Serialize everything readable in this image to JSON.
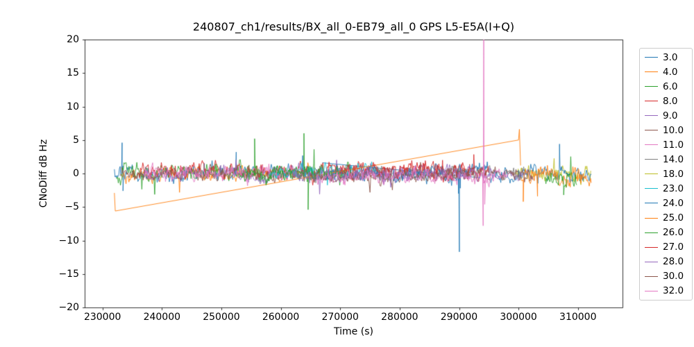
{
  "chart_data": {
    "type": "line",
    "title": "240807_ch1/results/BX_all_0-EB79_all_0 GPS L5-E5A(I+Q)",
    "xlabel": "Time (s)",
    "ylabel": "CNoDiff dB Hz",
    "xlim": [
      227000,
      317500
    ],
    "ylim": [
      -20,
      20
    ],
    "x_ticks": [
      230000,
      240000,
      250000,
      260000,
      270000,
      280000,
      290000,
      300000,
      310000
    ],
    "y_ticks": [
      -20,
      -15,
      -10,
      -5,
      0,
      5,
      10,
      15,
      20
    ],
    "grid": false,
    "legend_position": "right-outside",
    "legend_entries": [
      "3.0",
      "4.0",
      "6.0",
      "8.0",
      "9.0",
      "10.0",
      "11.0",
      "14.0",
      "18.0",
      "23.0",
      "24.0",
      "25.0",
      "26.0",
      "27.0",
      "28.0",
      "30.0",
      "32.0"
    ],
    "description": "Noisy CNo difference traces per satellite PRN, mostly fluctuating within +/-3 dB around 0 between t=232000 and t=312000. Notable features: orange (25.0) sparse trace ramps from -5.6 at t=232000 to +5 at t=300000 with a +6.6 spike then drops; blue (24.0) negative spike to -11.7 at t=290000; pink (32.0) vertical glitch at t=294150 reaching +20 (clipped) from about -8; green (6.0) spikes to +6 / -5.4 near t=264500.",
    "series": [
      {
        "name": "3.0",
        "color": "#1f77b4",
        "segments": [
          {
            "type": "noise",
            "x0": 232000,
            "x1": 267000,
            "dt": 120,
            "mean": 0.0,
            "amp": 1.35,
            "seed": 31,
            "anomalies": [
              [
                233300,
                4.6
              ],
              [
                233450,
                -2.6
              ],
              [
                252500,
                3.2
              ]
            ]
          },
          {
            "type": "line",
            "pts": [
              [
                267000,
                1.6
              ],
              [
                293200,
                -0.6
              ]
            ]
          }
        ]
      },
      {
        "name": "4.0",
        "color": "#ff7f0e",
        "segments": [
          {
            "type": "noise",
            "x0": 233000,
            "x1": 265000,
            "dt": 120,
            "mean": -0.2,
            "amp": 1.2,
            "seed": 42
          }
        ]
      },
      {
        "name": "6.0",
        "color": "#2ca02c",
        "segments": [
          {
            "type": "noise",
            "x0": 232300,
            "x1": 266800,
            "dt": 120,
            "mean": 0.2,
            "amp": 1.4,
            "seed": 63,
            "anomalies": [
              [
                255600,
                5.2
              ],
              [
                263900,
                6.0
              ],
              [
                264600,
                -5.4
              ],
              [
                265600,
                3.6
              ]
            ]
          }
        ]
      },
      {
        "name": "8.0",
        "color": "#d62728",
        "segments": [
          {
            "type": "noise",
            "x0": 236000,
            "x1": 292000,
            "dt": 130,
            "mean": 0.3,
            "amp": 1.35,
            "seed": 85
          }
        ]
      },
      {
        "name": "9.0",
        "color": "#9467bd",
        "segments": [
          {
            "type": "noise",
            "x0": 236500,
            "x1": 290000,
            "dt": 130,
            "mean": 0.0,
            "amp": 1.2,
            "seed": 97
          }
        ]
      },
      {
        "name": "10.0",
        "color": "#8c564b",
        "segments": [
          {
            "type": "noise",
            "x0": 233200,
            "x1": 292500,
            "dt": 130,
            "mean": 0.0,
            "amp": 1.1,
            "seed": 104
          }
        ]
      },
      {
        "name": "11.0",
        "color": "#e377c2",
        "segments": [
          {
            "type": "noise",
            "x0": 237000,
            "x1": 263000,
            "dt": 120,
            "mean": 0.0,
            "amp": 1.3,
            "seed": 117
          }
        ]
      },
      {
        "name": "14.0",
        "color": "#7f7f7f",
        "segments": [
          {
            "type": "noise",
            "x0": 262000,
            "x1": 301000,
            "dt": 130,
            "mean": 0.0,
            "amp": 1.1,
            "seed": 146
          }
        ]
      },
      {
        "name": "18.0",
        "color": "#bcbd22",
        "segments": [
          {
            "type": "noise",
            "x0": 299500,
            "x1": 312200,
            "dt": 110,
            "mean": 0.0,
            "amp": 1.2,
            "seed": 188
          }
        ]
      },
      {
        "name": "23.0",
        "color": "#17becf",
        "segments": [
          {
            "type": "noise",
            "x0": 258000,
            "x1": 276000,
            "dt": 120,
            "mean": 0.3,
            "amp": 1.1,
            "seed": 239
          }
        ]
      },
      {
        "name": "24.0",
        "color": "#1f77b4",
        "segments": [
          {
            "type": "noise",
            "x0": 267500,
            "x1": 312300,
            "dt": 120,
            "mean": 0.0,
            "amp": 1.3,
            "seed": 241,
            "anomalies": [
              [
                289900,
                -3.0
              ],
              [
                290050,
                -11.7
              ],
              [
                290200,
                -2.2
              ],
              [
                306900,
                4.4
              ]
            ]
          }
        ]
      },
      {
        "name": "25.0",
        "color": "#ff7f0e",
        "segments": [
          {
            "type": "line",
            "pts": [
              [
                232000,
                -2.9
              ],
              [
                232150,
                -5.6
              ],
              [
                300000,
                5.0
              ],
              [
                300150,
                6.6
              ],
              [
                300350,
                1.2
              ]
            ]
          },
          {
            "type": "noise",
            "x0": 300350,
            "x1": 312300,
            "dt": 110,
            "mean": -0.4,
            "amp": 1.5,
            "seed": 2510,
            "anomalies": [
              [
                300800,
                -4.2
              ],
              [
                303200,
                -3.4
              ]
            ]
          }
        ]
      },
      {
        "name": "26.0",
        "color": "#2ca02c",
        "segments": [
          {
            "type": "noise",
            "x0": 253000,
            "x1": 272000,
            "dt": 120,
            "mean": 0.0,
            "amp": 1.2,
            "seed": 263
          },
          {
            "type": "noise",
            "x0": 304500,
            "x1": 309800,
            "dt": 110,
            "mean": -0.8,
            "amp": 1.2,
            "seed": 264,
            "anomalies": [
              [
                307600,
                -3.2
              ]
            ]
          }
        ]
      },
      {
        "name": "27.0",
        "color": "#d62728",
        "segments": [
          {
            "type": "noise",
            "x0": 268000,
            "x1": 295000,
            "dt": 120,
            "mean": 0.4,
            "amp": 1.3,
            "seed": 275
          }
        ]
      },
      {
        "name": "28.0",
        "color": "#9467bd",
        "segments": [
          {
            "type": "noise",
            "x0": 262000,
            "x1": 302300,
            "dt": 130,
            "mean": -0.2,
            "amp": 1.1,
            "seed": 287
          }
        ]
      },
      {
        "name": "30.0",
        "color": "#8c564b",
        "segments": [
          {
            "type": "noise",
            "x0": 265000,
            "x1": 302500,
            "dt": 130,
            "mean": -0.3,
            "amp": 1.2,
            "seed": 309
          }
        ]
      },
      {
        "name": "32.0",
        "color": "#e377c2",
        "segments": [
          {
            "type": "noise",
            "x0": 266000,
            "x1": 298200,
            "dt": 120,
            "mean": -0.5,
            "amp": 1.2,
            "seed": 327,
            "anomalies": [
              [
                294050,
                -7.8
              ],
              [
                294150,
                20.0
              ],
              [
                294320,
                -4.6
              ],
              [
                294600,
                -1.2
              ]
            ]
          }
        ]
      }
    ]
  }
}
